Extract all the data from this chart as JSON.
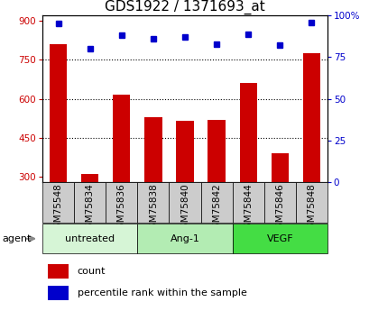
{
  "title": "GDS1922 / 1371693_at",
  "samples": [
    "GSM75548",
    "GSM75834",
    "GSM75836",
    "GSM75838",
    "GSM75840",
    "GSM75842",
    "GSM75844",
    "GSM75846",
    "GSM75848"
  ],
  "counts": [
    810,
    310,
    615,
    530,
    515,
    520,
    660,
    390,
    775
  ],
  "percentiles": [
    95,
    80,
    88,
    86,
    87,
    83,
    89,
    82,
    96
  ],
  "bar_color": "#cc0000",
  "dot_color": "#0000cc",
  "ylim_left": [
    280,
    920
  ],
  "yticks_left": [
    300,
    450,
    600,
    750,
    900
  ],
  "ylim_right": [
    0,
    100
  ],
  "yticks_right": [
    0,
    25,
    50,
    75,
    100
  ],
  "yticklabels_right": [
    "0",
    "25",
    "50",
    "75",
    "100%"
  ],
  "groups": [
    {
      "label": "untreated",
      "indices": [
        0,
        1,
        2
      ],
      "color": "#d6f5d6"
    },
    {
      "label": "Ang-1",
      "indices": [
        3,
        4,
        5
      ],
      "color": "#b3ecb3"
    },
    {
      "label": "VEGF",
      "indices": [
        6,
        7,
        8
      ],
      "color": "#44dd44"
    }
  ],
  "group_row_label": "agent",
  "legend_count_label": "count",
  "legend_percentile_label": "percentile rank within the sample",
  "tick_area_color": "#cccccc",
  "grid_color": "#000000",
  "title_fontsize": 11,
  "axis_fontsize": 7.5,
  "label_fontsize": 8,
  "bar_width": 0.55
}
